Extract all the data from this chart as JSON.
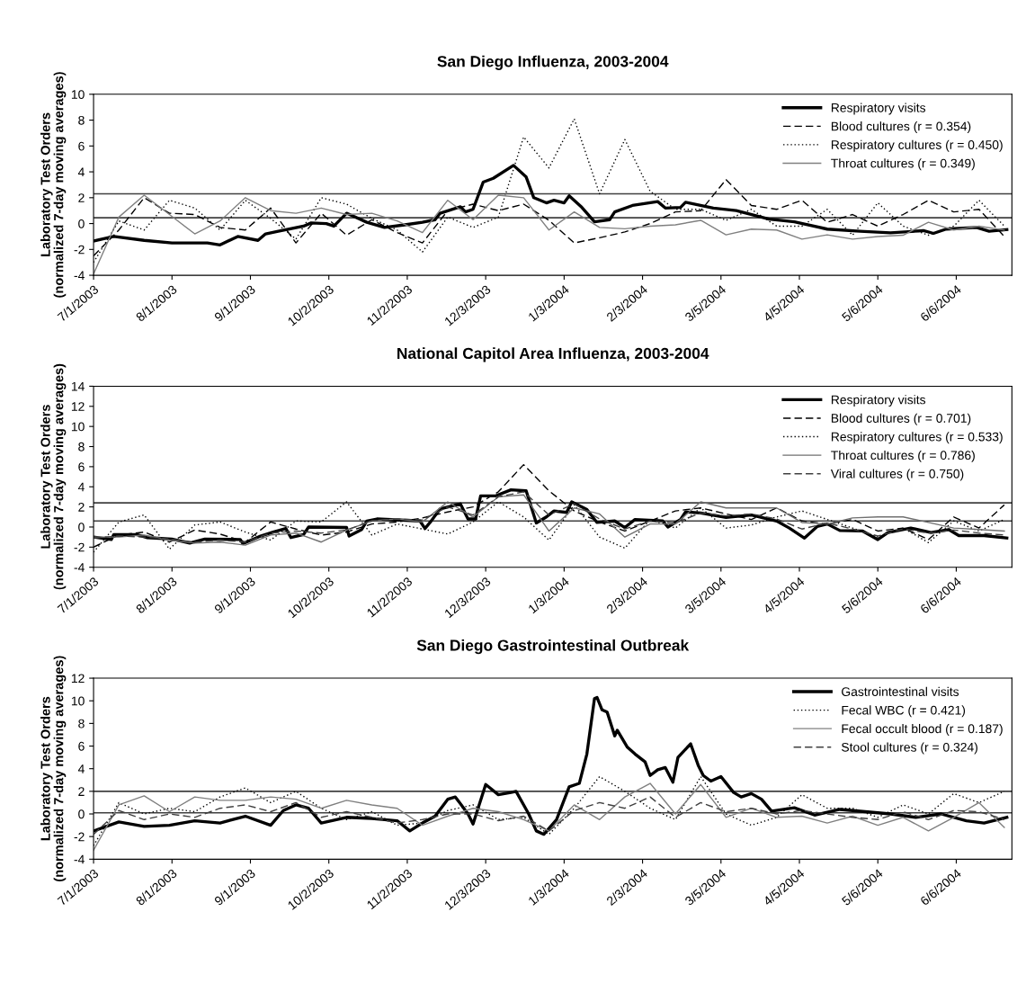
{
  "chart_data": [
    {
      "type": "line",
      "title": "San Diego Influenza, 2003-2004",
      "ylabel": "Laboratory Test Orders\n(normalized 7-day moving averages)",
      "x": [
        "2003-07-01",
        "2003-07-11",
        "2003-07-21",
        "2003-07-31",
        "2003-08-10",
        "2003-08-20",
        "2003-08-30",
        "2003-09-09",
        "2003-09-19",
        "2003-09-29",
        "2003-10-09",
        "2003-10-19",
        "2003-10-29",
        "2003-11-08",
        "2003-11-18",
        "2003-11-28",
        "2003-12-08",
        "2003-12-18",
        "2003-12-28",
        "2004-01-07",
        "2004-01-17",
        "2004-01-27",
        "2004-02-06",
        "2004-02-16",
        "2004-02-26",
        "2004-03-07",
        "2004-03-17",
        "2004-03-27",
        "2004-04-06",
        "2004-04-16",
        "2004-04-26",
        "2004-05-06",
        "2004-05-16",
        "2004-05-26",
        "2004-06-05",
        "2004-06-15",
        "2004-06-25"
      ],
      "series": [
        {
          "name": "Respiratory visits",
          "color": "#000000",
          "line_style": "solid",
          "x": [
            "2003-07-01",
            "2003-07-09",
            "2003-07-21",
            "2003-08-01",
            "2003-08-15",
            "2003-08-20",
            "2003-08-27",
            "2003-09-04",
            "2003-09-07",
            "2003-09-12",
            "2003-09-22",
            "2003-09-25",
            "2003-10-01",
            "2003-10-04",
            "2003-10-09",
            "2003-10-12",
            "2003-10-17",
            "2003-10-24",
            "2003-11-01",
            "2003-11-08",
            "2003-11-13",
            "2003-11-15",
            "2003-11-23",
            "2003-11-25",
            "2003-11-28",
            "2003-12-02",
            "2003-12-06",
            "2003-12-14",
            "2003-12-19",
            "2003-12-22",
            "2003-12-27",
            "2003-12-30",
            "2004-01-03",
            "2004-01-05",
            "2004-01-10",
            "2004-01-15",
            "2004-01-21",
            "2004-01-23",
            "2004-01-30",
            "2004-02-09",
            "2004-02-12",
            "2004-02-18",
            "2004-02-20",
            "2004-03-02",
            "2004-03-11",
            "2004-03-24",
            "2004-04-03",
            "2004-04-16",
            "2004-04-29",
            "2004-05-11",
            "2004-05-24",
            "2004-05-28",
            "2004-06-02",
            "2004-06-14",
            "2004-06-19",
            "2004-06-26"
          ],
          "values": [
            -1.35,
            -1.0,
            -1.3,
            -1.5,
            -1.5,
            -1.65,
            -1.0,
            -1.3,
            -0.8,
            -0.6,
            -0.2,
            0.05,
            0.0,
            -0.2,
            0.8,
            0.55,
            0.1,
            -0.3,
            -0.1,
            0.1,
            0.3,
            0.8,
            1.3,
            0.9,
            1.1,
            3.2,
            3.5,
            4.5,
            3.6,
            2.0,
            1.6,
            1.8,
            1.6,
            2.15,
            1.25,
            0.13,
            0.3,
            0.9,
            1.4,
            1.7,
            1.2,
            1.25,
            1.65,
            1.2,
            1.0,
            0.35,
            0.13,
            -0.43,
            -0.6,
            -0.72,
            -0.55,
            -0.76,
            -0.43,
            -0.3,
            -0.6,
            -0.47
          ]
        },
        {
          "name": "Blood cultures (r = 0.354)",
          "color": "#000000",
          "line_style": "dashed",
          "values": [
            -2.5,
            -0.5,
            2.0,
            0.8,
            0.7,
            -0.3,
            -0.5,
            1.2,
            -1.5,
            0.8,
            -0.9,
            0.3,
            -0.7,
            -1.5,
            1.0,
            1.5,
            1.0,
            1.5,
            0.25,
            -1.5,
            -1.1,
            -0.65,
            0.0,
            0.9,
            1.0,
            3.4,
            1.4,
            1.1,
            1.8,
            0.1,
            0.7,
            -0.2,
            0.7,
            1.8,
            0.9,
            1.1,
            -1.0
          ]
        },
        {
          "name": "Respiratory cultures (r = 0.450)",
          "color": "#000000",
          "line_style": "dotted",
          "values": [
            -3.0,
            0.2,
            -0.5,
            1.8,
            1.2,
            -0.5,
            1.8,
            0.4,
            -1.2,
            2.0,
            1.5,
            0.4,
            -0.5,
            -2.2,
            0.5,
            -0.3,
            0.5,
            6.7,
            4.3,
            8.1,
            2.3,
            6.5,
            2.5,
            1.1,
            1.1,
            0.25,
            1.1,
            -0.2,
            -0.2,
            1.1,
            -0.9,
            1.6,
            -0.2,
            -0.9,
            -0.2,
            1.8,
            -0.2
          ]
        },
        {
          "name": "Throat cultures (r = 0.349)",
          "color": "#808080",
          "line_style": "solid",
          "values": [
            -3.9,
            0.5,
            2.2,
            0.7,
            -0.8,
            0.2,
            2.0,
            1.0,
            0.8,
            1.2,
            0.7,
            0.8,
            0.2,
            -0.7,
            1.8,
            0.3,
            2.2,
            2.0,
            -0.5,
            0.9,
            -0.3,
            -0.4,
            -0.2,
            -0.1,
            0.25,
            -0.87,
            -0.43,
            -0.5,
            -1.2,
            -0.87,
            -1.2,
            -1.0,
            -0.9,
            0.1,
            -0.5,
            -0.2,
            -0.5
          ]
        }
      ],
      "xlim": [
        "2003-07-01",
        "2004-06-28"
      ],
      "xticks": [
        {
          "value": "2003-07-01",
          "label": "7/1/2003"
        },
        {
          "value": "2003-08-01",
          "label": "8/1/2003"
        },
        {
          "value": "2003-09-01",
          "label": "9/1/2003"
        },
        {
          "value": "2003-10-02",
          "label": "10/2/2003"
        },
        {
          "value": "2003-11-02",
          "label": "11/2/2003"
        },
        {
          "value": "2003-12-03",
          "label": "12/3/2003"
        },
        {
          "value": "2004-01-03",
          "label": "1/3/2004"
        },
        {
          "value": "2004-02-03",
          "label": "2/3/2004"
        },
        {
          "value": "2004-03-05",
          "label": "3/5/2004"
        },
        {
          "value": "2004-04-05",
          "label": "4/5/2004"
        },
        {
          "value": "2004-05-06",
          "label": "5/6/2004"
        },
        {
          "value": "2004-06-06",
          "label": "6/6/2004"
        }
      ],
      "ylim": [
        -4,
        10
      ],
      "yticks": [
        -4,
        -2,
        0,
        2,
        4,
        6,
        8,
        10
      ],
      "ref_lines": [
        {
          "axis": "y",
          "value": 2.3,
          "color": "#404040"
        },
        {
          "axis": "y",
          "value": 0.45,
          "color": "#404040"
        }
      ],
      "legend": "top right",
      "grid": false
    },
    {
      "type": "line",
      "title": "National Capitol Area Influenza, 2003-2004",
      "ylabel": "Laboratory Test Orders\n(normalized 7-day moving averages)",
      "x": [
        "2003-07-01",
        "2003-07-11",
        "2003-07-21",
        "2003-07-31",
        "2003-08-10",
        "2003-08-20",
        "2003-08-30",
        "2003-09-09",
        "2003-09-19",
        "2003-09-29",
        "2003-10-09",
        "2003-10-19",
        "2003-10-29",
        "2003-11-08",
        "2003-11-18",
        "2003-11-28",
        "2003-12-08",
        "2003-12-18",
        "2003-12-28",
        "2004-01-07",
        "2004-01-17",
        "2004-01-27",
        "2004-02-06",
        "2004-02-16",
        "2004-02-26",
        "2004-03-07",
        "2004-03-17",
        "2004-03-27",
        "2004-04-06",
        "2004-04-16",
        "2004-04-26",
        "2004-05-06",
        "2004-05-16",
        "2004-05-26",
        "2004-06-05",
        "2004-06-15",
        "2004-06-25"
      ],
      "series": [
        {
          "name": "Respiratory visits",
          "color": "#000000",
          "line_style": "solid",
          "x": [
            "2003-07-01",
            "2003-07-08",
            "2003-07-09",
            "2003-07-18",
            "2003-07-22",
            "2003-08-01",
            "2003-08-08",
            "2003-08-14",
            "2003-08-28",
            "2003-08-29",
            "2003-09-05",
            "2003-09-10",
            "2003-09-15",
            "2003-09-17",
            "2003-09-22",
            "2003-09-24",
            "2003-10-09",
            "2003-10-10",
            "2003-10-15",
            "2003-10-17",
            "2003-10-21",
            "2003-11-07",
            "2003-11-09",
            "2003-11-11",
            "2003-11-15",
            "2003-11-23",
            "2003-11-26",
            "2003-11-29",
            "2003-12-01",
            "2003-12-07",
            "2003-12-13",
            "2003-12-19",
            "2003-12-23",
            "2003-12-27",
            "2003-12-30",
            "2004-01-04",
            "2004-01-06",
            "2004-01-12",
            "2004-01-16",
            "2004-01-23",
            "2004-01-27",
            "2004-01-31",
            "2004-02-11",
            "2004-02-13",
            "2004-02-18",
            "2004-02-20",
            "2004-02-26",
            "2004-03-07",
            "2004-03-17",
            "2004-03-27",
            "2004-04-01",
            "2004-04-07",
            "2004-04-12",
            "2004-04-16",
            "2004-04-21",
            "2004-04-30",
            "2004-05-06",
            "2004-05-10",
            "2004-05-19",
            "2004-05-27",
            "2004-06-03",
            "2004-06-07",
            "2004-06-17",
            "2004-06-26"
          ],
          "values": [
            -1.0,
            -1.25,
            -0.75,
            -0.75,
            -1.05,
            -1.2,
            -1.6,
            -1.2,
            -1.25,
            -1.65,
            -0.9,
            -0.5,
            -0.15,
            -1.05,
            -0.75,
            0.0,
            -0.05,
            -0.9,
            -0.25,
            0.6,
            0.8,
            0.6,
            -0.15,
            0.45,
            1.8,
            2.3,
            0.8,
            0.8,
            3.1,
            3.1,
            3.7,
            3.6,
            0.4,
            1.0,
            1.6,
            1.45,
            2.5,
            1.75,
            0.45,
            0.6,
            -0.05,
            0.75,
            0.6,
            0.0,
            0.75,
            1.5,
            1.4,
            0.95,
            1.2,
            0.6,
            -0.1,
            -1.1,
            0.05,
            0.3,
            -0.35,
            -0.4,
            -1.25,
            -0.55,
            -0.1,
            -0.55,
            -0.25,
            -0.85,
            -0.85,
            -1.1
          ]
        },
        {
          "name": "Blood cultures (r = 0.701)",
          "color": "#000000",
          "line_style": "dashed",
          "values": [
            -2.0,
            -0.8,
            -0.5,
            -1.5,
            -0.3,
            -0.7,
            -1.5,
            0.5,
            -0.2,
            -0.8,
            -0.5,
            0.3,
            0.5,
            0.9,
            1.5,
            2.0,
            3.5,
            6.2,
            3.6,
            1.6,
            0.5,
            -0.4,
            0.6,
            1.6,
            1.9,
            1.3,
            0.75,
            1.9,
            0.6,
            0.3,
            0.75,
            -0.4,
            -0.1,
            -1.25,
            1.0,
            -0.1,
            2.2
          ]
        },
        {
          "name": "Respiratory cultures (r = 0.533)",
          "color": "#000000",
          "line_style": "dotted",
          "values": [
            -2.5,
            0.5,
            1.2,
            -2.2,
            0.2,
            0.5,
            -0.5,
            -1.3,
            0.6,
            0.5,
            2.5,
            -0.8,
            0.3,
            -0.2,
            -0.7,
            0.5,
            2.5,
            1.0,
            -1.3,
            2.2,
            -1.0,
            -2.1,
            0.75,
            -0.1,
            1.9,
            -0.1,
            0.2,
            1.0,
            1.6,
            0.75,
            -0.1,
            -1.0,
            -0.1,
            -1.55,
            0.6,
            -0.4,
            0.75
          ]
        },
        {
          "name": "Throat cultures (r = 0.786)",
          "color": "#707070",
          "line_style": "solid",
          "values": [
            -1.0,
            -1.0,
            -0.8,
            -1.3,
            -1.6,
            -1.5,
            -1.8,
            -0.8,
            -0.6,
            -1.5,
            -0.3,
            0.6,
            0.8,
            0.5,
            2.5,
            1.0,
            3.0,
            3.2,
            -0.4,
            1.9,
            1.3,
            -1.0,
            0.3,
            0.3,
            2.5,
            1.9,
            1.9,
            1.9,
            0.45,
            0.3,
            0.9,
            1.0,
            1.0,
            0.45,
            -0.1,
            -0.25,
            -0.4
          ]
        },
        {
          "name": "Viral cultures (r = 0.750)",
          "color": "#404040",
          "line_style": "dashed",
          "values": [
            -1.1,
            -0.9,
            -1.0,
            -1.2,
            -1.5,
            -1.3,
            -1.5,
            -0.6,
            -0.4,
            -0.6,
            -0.3,
            0.6,
            0.8,
            0.7,
            2.0,
            1.2,
            3.0,
            3.5,
            1.2,
            2.3,
            0.8,
            -0.2,
            0.6,
            0.4,
            1.4,
            1.1,
            1.3,
            0.8,
            -0.2,
            0.4,
            -0.2,
            -0.9,
            -0.2,
            -0.6,
            -0.3,
            -0.6,
            -0.8
          ]
        }
      ],
      "xlim": [
        "2003-07-01",
        "2004-06-28"
      ],
      "xticks": [
        {
          "value": "2003-07-01",
          "label": "7/1/2003"
        },
        {
          "value": "2003-08-01",
          "label": "8/1/2003"
        },
        {
          "value": "2003-09-01",
          "label": "9/1/2003"
        },
        {
          "value": "2003-10-02",
          "label": "10/2/2003"
        },
        {
          "value": "2003-11-02",
          "label": "11/2/2003"
        },
        {
          "value": "2003-12-03",
          "label": "12/3/2003"
        },
        {
          "value": "2004-01-03",
          "label": "1/3/2004"
        },
        {
          "value": "2004-02-03",
          "label": "2/3/2004"
        },
        {
          "value": "2004-03-05",
          "label": "3/5/2004"
        },
        {
          "value": "2004-04-05",
          "label": "4/5/2004"
        },
        {
          "value": "2004-05-06",
          "label": "5/6/2004"
        },
        {
          "value": "2004-06-06",
          "label": "6/6/2004"
        }
      ],
      "ylim": [
        -4,
        14
      ],
      "yticks": [
        -4,
        -2,
        0,
        2,
        4,
        6,
        8,
        10,
        12,
        14
      ],
      "ref_lines": [
        {
          "axis": "y",
          "value": 2.4,
          "color": "#404040"
        },
        {
          "axis": "y",
          "value": 0.6,
          "color": "#404040"
        }
      ],
      "legend": "top right",
      "grid": false
    },
    {
      "type": "line",
      "title": "San Diego Gastrointestinal Outbreak",
      "ylabel": "Laboratory Test Orders\n(normalized 7-day moving averages)",
      "x": [
        "2003-07-01",
        "2003-07-11",
        "2003-07-21",
        "2003-07-31",
        "2003-08-10",
        "2003-08-20",
        "2003-08-30",
        "2003-09-09",
        "2003-09-19",
        "2003-09-29",
        "2003-10-09",
        "2003-10-19",
        "2003-10-29",
        "2003-11-08",
        "2003-11-18",
        "2003-11-28",
        "2003-12-08",
        "2003-12-18",
        "2003-12-28",
        "2004-01-07",
        "2004-01-17",
        "2004-01-27",
        "2004-02-06",
        "2004-02-16",
        "2004-02-26",
        "2004-03-07",
        "2004-03-17",
        "2004-03-27",
        "2004-04-06",
        "2004-04-16",
        "2004-04-26",
        "2004-05-06",
        "2004-05-16",
        "2004-05-26",
        "2004-06-05",
        "2004-06-15",
        "2004-06-25"
      ],
      "series": [
        {
          "name": "Gastrointestinal visits",
          "color": "#000000",
          "line_style": "solid",
          "x": [
            "2003-07-01",
            "2003-07-11",
            "2003-07-21",
            "2003-07-31",
            "2003-08-10",
            "2003-08-20",
            "2003-08-30",
            "2003-09-09",
            "2003-09-14",
            "2003-09-19",
            "2003-09-24",
            "2003-09-29",
            "2003-10-09",
            "2003-10-19",
            "2003-10-29",
            "2003-11-03",
            "2003-11-08",
            "2003-11-13",
            "2003-11-18",
            "2003-11-21",
            "2003-11-26",
            "2003-11-28",
            "2003-12-03",
            "2003-12-08",
            "2003-12-13",
            "2003-12-15",
            "2003-12-20",
            "2003-12-23",
            "2003-12-26",
            "2003-12-31",
            "2004-01-05",
            "2004-01-09",
            "2004-01-12",
            "2004-01-15",
            "2004-01-16",
            "2004-01-18",
            "2004-01-20",
            "2004-01-23",
            "2004-01-24",
            "2004-01-28",
            "2004-01-31",
            "2004-02-04",
            "2004-02-06",
            "2004-02-09",
            "2004-02-12",
            "2004-02-15",
            "2004-02-17",
            "2004-02-22",
            "2004-02-25",
            "2004-02-27",
            "2004-03-01",
            "2004-03-05",
            "2004-03-10",
            "2004-03-13",
            "2004-03-17",
            "2004-03-21",
            "2004-03-25",
            "2004-04-03",
            "2004-04-11",
            "2004-04-21",
            "2004-05-01",
            "2004-05-11",
            "2004-05-21",
            "2004-05-31",
            "2004-06-10",
            "2004-06-17",
            "2004-06-26"
          ],
          "values": [
            -1.5,
            -0.7,
            -1.1,
            -1.0,
            -0.6,
            -0.8,
            -0.2,
            -1.0,
            0.3,
            0.8,
            0.5,
            -0.8,
            -0.3,
            -0.4,
            -0.6,
            -1.5,
            -0.8,
            -0.2,
            1.3,
            1.5,
            0.0,
            -0.9,
            2.6,
            1.7,
            1.9,
            2.0,
            0.0,
            -1.5,
            -1.8,
            -0.5,
            2.4,
            2.7,
            5.3,
            10.2,
            10.3,
            9.2,
            9.0,
            6.9,
            7.4,
            5.9,
            5.3,
            4.6,
            3.4,
            3.9,
            4.1,
            2.8,
            5.0,
            6.2,
            4.3,
            3.4,
            2.9,
            3.3,
            1.9,
            1.5,
            1.8,
            1.3,
            0.25,
            0.55,
            -0.1,
            0.4,
            0.2,
            0.0,
            -0.3,
            0.0,
            -0.6,
            -0.8,
            -0.3
          ]
        },
        {
          "name": "Fecal WBC (r = 0.421)",
          "color": "#000000",
          "line_style": "dotted",
          "values": [
            -2.8,
            1.0,
            0.0,
            0.5,
            0.2,
            1.5,
            2.3,
            1.0,
            2.0,
            0.5,
            -0.5,
            0.2,
            -1.0,
            -0.8,
            0.3,
            0.8,
            -0.5,
            -0.3,
            -1.8,
            0.5,
            3.3,
            2.0,
            0.5,
            -0.5,
            3.3,
            0.0,
            -1.0,
            -0.3,
            1.7,
            0.5,
            0.5,
            -0.3,
            0.8,
            0.0,
            1.8,
            1.0,
            2.0
          ]
        },
        {
          "name": "Fecal occult blood (r = 0.187)",
          "color": "#808080",
          "line_style": "solid",
          "values": [
            -3.2,
            0.8,
            1.6,
            0.2,
            1.5,
            1.2,
            1.2,
            1.5,
            1.3,
            0.5,
            1.2,
            0.8,
            0.5,
            -1.0,
            -0.2,
            0.5,
            0.2,
            -0.5,
            -1.5,
            0.8,
            -0.5,
            1.5,
            2.7,
            0.0,
            2.6,
            -0.3,
            0.5,
            -0.3,
            -0.2,
            -0.8,
            -0.2,
            -1.0,
            -0.3,
            -1.5,
            -0.3,
            1.0,
            -1.2
          ]
        },
        {
          "name": "Stool cultures (r = 0.324)",
          "color": "#404040",
          "line_style": "dashed",
          "values": [
            -1.8,
            0.3,
            -0.5,
            0.0,
            -0.3,
            0.5,
            0.8,
            0.2,
            1.0,
            -0.3,
            0.2,
            -0.3,
            -0.8,
            -0.5,
            0.0,
            0.0,
            -0.6,
            -0.2,
            -1.5,
            0.3,
            1.0,
            0.5,
            1.5,
            -0.3,
            1.0,
            0.2,
            0.5,
            0.0,
            0.3,
            0.0,
            -0.3,
            -0.5,
            0.2,
            -0.5,
            0.3,
            0.2,
            -0.5
          ]
        }
      ],
      "xlim": [
        "2003-07-01",
        "2004-06-28"
      ],
      "xticks": [
        {
          "value": "2003-07-01",
          "label": "7/1/2003"
        },
        {
          "value": "2003-08-01",
          "label": "8/1/2003"
        },
        {
          "value": "2003-09-01",
          "label": "9/1/2003"
        },
        {
          "value": "2003-10-02",
          "label": "10/2/2003"
        },
        {
          "value": "2003-11-02",
          "label": "11/2/2003"
        },
        {
          "value": "2003-12-03",
          "label": "12/3/2003"
        },
        {
          "value": "2004-01-03",
          "label": "1/3/2004"
        },
        {
          "value": "2004-02-03",
          "label": "2/3/2004"
        },
        {
          "value": "2004-03-05",
          "label": "3/5/2004"
        },
        {
          "value": "2004-04-05",
          "label": "4/5/2004"
        },
        {
          "value": "2004-05-06",
          "label": "5/6/2004"
        },
        {
          "value": "2004-06-06",
          "label": "6/6/2004"
        }
      ],
      "ylim": [
        -4,
        12
      ],
      "yticks": [
        -4,
        -2,
        0,
        2,
        4,
        6,
        8,
        10,
        12
      ],
      "ref_lines": [
        {
          "axis": "y",
          "value": 2.0,
          "color": "#404040"
        },
        {
          "axis": "y",
          "value": 0.1,
          "color": "#404040"
        }
      ],
      "legend": "top right",
      "grid": false
    }
  ]
}
